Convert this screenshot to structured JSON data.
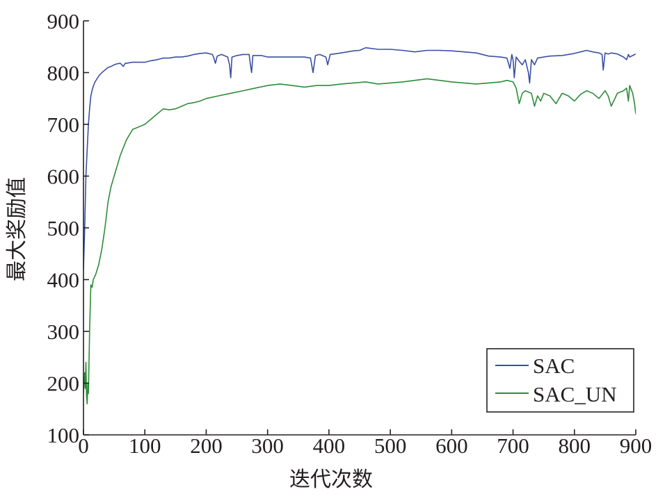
{
  "chart_data": {
    "type": "line",
    "title": "",
    "xlabel": "迭代次数",
    "ylabel": "最大奖励值",
    "xlim": [
      0,
      900
    ],
    "ylim": [
      100,
      900
    ],
    "xticks": [
      0,
      100,
      200,
      300,
      400,
      500,
      600,
      700,
      800,
      900
    ],
    "yticks": [
      100,
      200,
      300,
      400,
      500,
      600,
      700,
      800,
      900
    ],
    "xtick_labels": [
      "0",
      "100",
      "200",
      "300",
      "400",
      "500",
      "600",
      "700",
      "800",
      "900"
    ],
    "ytick_labels": [
      "100",
      "200",
      "300",
      "400",
      "500",
      "600",
      "700",
      "800",
      "900"
    ],
    "grid": false,
    "legend_position": "bottom-right",
    "series": [
      {
        "name": "SAC",
        "color": "#3a4fa3",
        "x": [
          0,
          2,
          4,
          6,
          8,
          10,
          12,
          15,
          18,
          22,
          26,
          30,
          35,
          40,
          45,
          50,
          55,
          60,
          65,
          68,
          70,
          80,
          90,
          100,
          110,
          120,
          130,
          140,
          150,
          160,
          170,
          180,
          190,
          200,
          210,
          212,
          215,
          218,
          225,
          235,
          238,
          240,
          242,
          250,
          260,
          270,
          272,
          274,
          276,
          290,
          300,
          320,
          340,
          360,
          370,
          374,
          378,
          385,
          395,
          398,
          402,
          420,
          440,
          450,
          460,
          480,
          500,
          520,
          540,
          560,
          580,
          600,
          620,
          640,
          660,
          680,
          690,
          695,
          698,
          700,
          702,
          705,
          710,
          715,
          720,
          725,
          727,
          730,
          735,
          740,
          750,
          760,
          780,
          800,
          810,
          820,
          830,
          840,
          845,
          847,
          850,
          855,
          860,
          870,
          880,
          885,
          888,
          890,
          895,
          900
        ],
        "values": [
          420,
          500,
          600,
          650,
          700,
          730,
          755,
          770,
          780,
          788,
          795,
          800,
          805,
          810,
          812,
          815,
          817,
          818,
          812,
          818,
          818,
          820,
          820,
          820,
          823,
          825,
          828,
          828,
          830,
          830,
          832,
          835,
          837,
          838,
          835,
          830,
          818,
          832,
          835,
          830,
          815,
          790,
          830,
          833,
          835,
          835,
          815,
          800,
          833,
          833,
          830,
          830,
          830,
          830,
          828,
          800,
          833,
          835,
          830,
          815,
          835,
          838,
          842,
          843,
          848,
          845,
          845,
          843,
          840,
          843,
          843,
          842,
          840,
          838,
          832,
          830,
          828,
          808,
          835,
          825,
          790,
          830,
          822,
          815,
          825,
          800,
          780,
          825,
          815,
          828,
          830,
          832,
          833,
          837,
          840,
          843,
          840,
          838,
          835,
          805,
          838,
          836,
          838,
          836,
          830,
          825,
          835,
          830,
          833,
          836
        ]
      },
      {
        "name": "SAC_UN",
        "color": "#2e8b3a",
        "x": [
          0,
          2,
          3,
          4,
          5,
          6,
          7,
          8,
          10,
          12,
          14,
          16,
          20,
          25,
          30,
          35,
          40,
          45,
          50,
          55,
          60,
          65,
          70,
          80,
          90,
          100,
          110,
          120,
          130,
          140,
          150,
          160,
          170,
          180,
          190,
          200,
          220,
          240,
          260,
          280,
          300,
          320,
          340,
          360,
          380,
          400,
          420,
          440,
          460,
          480,
          500,
          520,
          540,
          560,
          580,
          600,
          620,
          640,
          660,
          680,
          690,
          700,
          705,
          710,
          715,
          720,
          730,
          735,
          740,
          745,
          750,
          760,
          770,
          780,
          790,
          800,
          810,
          820,
          830,
          840,
          850,
          855,
          860,
          870,
          880,
          885,
          888,
          890,
          895,
          898,
          900
        ],
        "values": [
          180,
          220,
          190,
          240,
          175,
          160,
          200,
          180,
          300,
          390,
          385,
          400,
          410,
          430,
          460,
          500,
          550,
          580,
          600,
          620,
          640,
          655,
          670,
          690,
          695,
          700,
          710,
          720,
          730,
          728,
          730,
          735,
          740,
          742,
          745,
          750,
          755,
          760,
          765,
          770,
          775,
          778,
          775,
          772,
          775,
          775,
          778,
          780,
          782,
          778,
          780,
          782,
          785,
          788,
          785,
          782,
          780,
          778,
          780,
          782,
          785,
          782,
          770,
          740,
          760,
          765,
          760,
          735,
          755,
          745,
          760,
          755,
          740,
          760,
          755,
          745,
          758,
          765,
          760,
          750,
          765,
          755,
          735,
          760,
          765,
          770,
          745,
          775,
          760,
          740,
          720
        ]
      }
    ]
  }
}
